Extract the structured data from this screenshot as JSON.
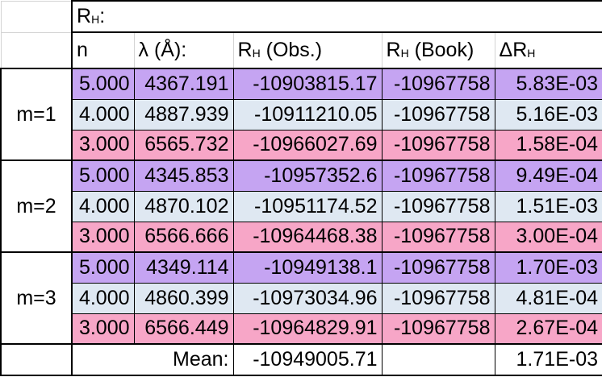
{
  "title_cell": {
    "main": "R",
    "sub": "H",
    "suffix": ":"
  },
  "headers": {
    "n": "n",
    "lambda": "λ (Å):",
    "obs": {
      "main": "R",
      "sub": "H",
      "suffix": " (Obs.)"
    },
    "book": {
      "main": "R",
      "sub": "H",
      "suffix": " (Book)"
    },
    "delta": {
      "main": "ΔR",
      "sub": "H",
      "suffix": ""
    }
  },
  "groups": [
    {
      "label": "m=1",
      "rows": [
        {
          "n": "5.000",
          "lambda": "4367.191",
          "obs": "-10903815.17",
          "book": "-10967758",
          "delta": "5.83E-03",
          "color": "#c5a4f2"
        },
        {
          "n": "4.000",
          "lambda": "4887.939",
          "obs": "-10911210.05",
          "book": "-10967758",
          "delta": "5.16E-03",
          "color": "#dfe8f2"
        },
        {
          "n": "3.000",
          "lambda": "6565.732",
          "obs": "-10966027.69",
          "book": "-10967758",
          "delta": "1.58E-04",
          "color": "#f7a6c7"
        }
      ]
    },
    {
      "label": "m=2",
      "rows": [
        {
          "n": "5.000",
          "lambda": "4345.853",
          "obs": "-10957352.6",
          "book": "-10967758",
          "delta": "9.49E-04",
          "color": "#c5a4f2"
        },
        {
          "n": "4.000",
          "lambda": "4870.102",
          "obs": "-10951174.52",
          "book": "-10967758",
          "delta": "1.51E-03",
          "color": "#dfe8f2"
        },
        {
          "n": "3.000",
          "lambda": "6566.666",
          "obs": "-10964468.38",
          "book": "-10967758",
          "delta": "3.00E-04",
          "color": "#f7a6c7"
        }
      ]
    },
    {
      "label": "m=3",
      "rows": [
        {
          "n": "5.000",
          "lambda": "4349.114",
          "obs": "-10949138.1",
          "book": "-10967758",
          "delta": "1.70E-03",
          "color": "#c5a4f2"
        },
        {
          "n": "4.000",
          "lambda": "4860.399",
          "obs": "-10973034.96",
          "book": "-10967758",
          "delta": "4.81E-04",
          "color": "#dfe8f2"
        },
        {
          "n": "3.000",
          "lambda": "6566.449",
          "obs": "-10964829.91",
          "book": "-10967758",
          "delta": "2.67E-04",
          "color": "#f7a6c7"
        }
      ]
    }
  ],
  "mean": {
    "label": "Mean:",
    "obs": "-10949005.71",
    "delta": "1.71E-03"
  }
}
